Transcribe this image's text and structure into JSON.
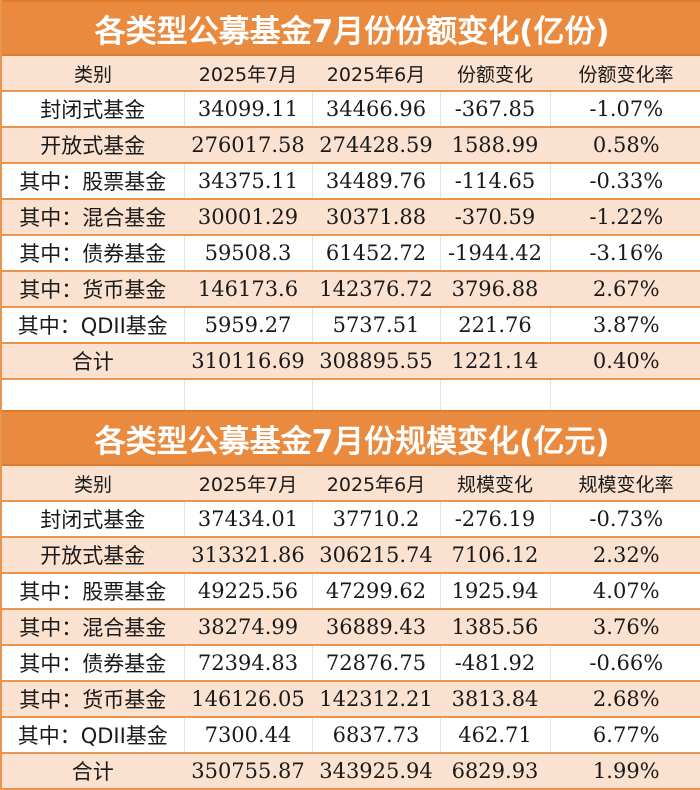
{
  "chart_data": [
    {
      "type": "table",
      "title": "各类型公募基金7月份份额变化(亿份)",
      "columns": [
        "类别",
        "2025年7月",
        "2025年6月",
        "份额变化",
        "份额变化率"
      ],
      "rows": [
        {
          "category": "封闭式基金",
          "jul": "34099.11",
          "jun": "34466.96",
          "change": "-367.85",
          "rate": "-1.07%"
        },
        {
          "category": "开放式基金",
          "jul": "276017.58",
          "jun": "274428.59",
          "change": "1588.99",
          "rate": "0.58%"
        },
        {
          "category": "其中：股票基金",
          "jul": "34375.11",
          "jun": "34489.76",
          "change": "-114.65",
          "rate": "-0.33%"
        },
        {
          "category": "其中：混合基金",
          "jul": "30001.29",
          "jun": "30371.88",
          "change": "-370.59",
          "rate": "-1.22%"
        },
        {
          "category": "其中：债券基金",
          "jul": "59508.3",
          "jun": "61452.72",
          "change": "-1944.42",
          "rate": "-3.16%"
        },
        {
          "category": "其中：货币基金",
          "jul": "146173.6",
          "jun": "142376.72",
          "change": "3796.88",
          "rate": "2.67%"
        },
        {
          "category": "其中：QDII基金",
          "jul": "5959.27",
          "jun": "5737.51",
          "change": "221.76",
          "rate": "3.87%"
        },
        {
          "category": "合计",
          "jul": "310116.69",
          "jun": "308895.55",
          "change": "1221.14",
          "rate": "0.40%"
        }
      ]
    },
    {
      "type": "table",
      "title": "各类型公募基金7月份规模变化(亿元)",
      "columns": [
        "类别",
        "2025年7月",
        "2025年6月",
        "规模变化",
        "规模变化率"
      ],
      "rows": [
        {
          "category": "封闭式基金",
          "jul": "37434.01",
          "jun": "37710.2",
          "change": "-276.19",
          "rate": "-0.73%"
        },
        {
          "category": "开放式基金",
          "jul": "313321.86",
          "jun": "306215.74",
          "change": "7106.12",
          "rate": "2.32%"
        },
        {
          "category": "其中：股票基金",
          "jul": "49225.56",
          "jun": "47299.62",
          "change": "1925.94",
          "rate": "4.07%"
        },
        {
          "category": "其中：混合基金",
          "jul": "38274.99",
          "jun": "36889.43",
          "change": "1385.56",
          "rate": "3.76%"
        },
        {
          "category": "其中：债券基金",
          "jul": "72394.83",
          "jun": "72876.75",
          "change": "-481.92",
          "rate": "-0.66%"
        },
        {
          "category": "其中：货币基金",
          "jul": "146126.05",
          "jun": "142312.21",
          "change": "3813.84",
          "rate": "2.68%"
        },
        {
          "category": "其中：QDII基金",
          "jul": "7300.44",
          "jun": "6837.73",
          "change": "462.71",
          "rate": "6.77%"
        },
        {
          "category": "合计",
          "jul": "350755.87",
          "jun": "343925.94",
          "change": "6829.93",
          "rate": "1.99%"
        }
      ]
    }
  ],
  "colors": {
    "title_bg": "#ea8a3e",
    "title_text": "#ffffff",
    "alt_row_bg": "#fbe1cf",
    "border": "#e9954f"
  }
}
